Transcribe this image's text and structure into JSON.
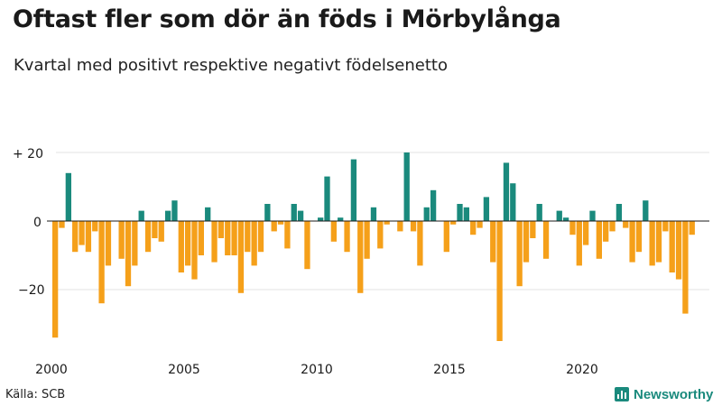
{
  "chart_data": {
    "type": "bar",
    "title": "Oftast fler som dör än föds i Mörbylånga",
    "subtitle": "Kvartal med positivt respektive negativt födelsenetto",
    "x_start": 2000,
    "frequency": "quarterly",
    "x_tick_labels": [
      "2000",
      "2005",
      "2010",
      "2015",
      "2020"
    ],
    "y_tick_labels": [
      "+ 20",
      "0",
      "−20"
    ],
    "ylim": [
      -36,
      21
    ],
    "colors": {
      "positive": "#1a8a7d",
      "negative": "#f5a01a"
    },
    "values": [
      -34,
      -2,
      14,
      -9,
      -7,
      -9,
      -3,
      -24,
      -13,
      0,
      -11,
      -19,
      -13,
      3,
      -9,
      -5,
      -6,
      3,
      6,
      -15,
      -13,
      -17,
      -10,
      4,
      -12,
      -5,
      -10,
      -10,
      -21,
      -9,
      -13,
      -9,
      5,
      -3,
      -1,
      -8,
      5,
      3,
      -14,
      0,
      1,
      13,
      -6,
      1,
      -9,
      18,
      -21,
      -11,
      4,
      -8,
      -1,
      0,
      -3,
      20,
      -3,
      -13,
      4,
      9,
      0,
      -9,
      -1,
      5,
      4,
      -4,
      -2,
      7,
      -12,
      -35,
      17,
      11,
      -19,
      -12,
      -5,
      5,
      -11,
      0,
      3,
      1,
      -4,
      -13,
      -7,
      3,
      -11,
      -6,
      -3,
      5,
      -2,
      -12,
      -9,
      6,
      -13,
      -12,
      -3,
      -15,
      -17,
      -27,
      -4
    ]
  },
  "footer": {
    "source": "Källa: SCB",
    "brand": "Newsworthy"
  }
}
